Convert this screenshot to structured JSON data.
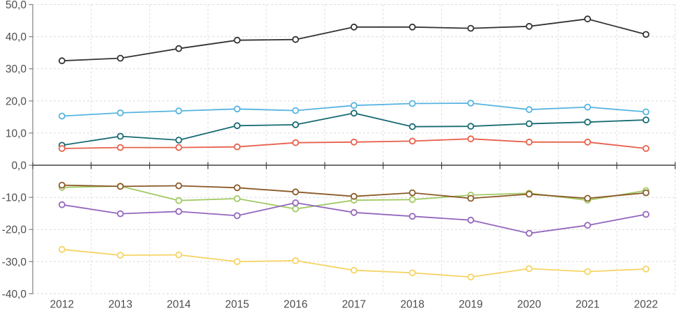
{
  "chart_data": {
    "type": "line",
    "title": "",
    "xlabel": "",
    "ylabel": "",
    "x_labels": [
      "2012",
      "2013",
      "2014",
      "2015",
      "2016",
      "2017",
      "2018",
      "2019",
      "2020",
      "2021",
      "2022"
    ],
    "y_tick_labels": [
      "50,0",
      "40,0",
      "30,0",
      "20,0",
      "10,0",
      "0,0",
      "-10,0",
      "-20,0",
      "-30,0",
      "-40,0"
    ],
    "ylim": [
      -40,
      50
    ],
    "ytick_step": 10,
    "grid": "dashed",
    "legend": "none",
    "decimal_style": "comma",
    "series": [
      {
        "name": "dark-gray-line",
        "color": "#333333",
        "values": [
          32.5,
          33.3,
          36.3,
          38.9,
          39.1,
          43.0,
          43.0,
          42.6,
          43.2,
          45.5,
          40.7
        ]
      },
      {
        "name": "light-blue-line",
        "color": "#56b4e1",
        "values": [
          15.3,
          16.3,
          16.9,
          17.5,
          17.0,
          18.6,
          19.2,
          19.3,
          17.3,
          18.1,
          16.6
        ]
      },
      {
        "name": "teal-line",
        "color": "#166a73",
        "values": [
          6.2,
          9.0,
          7.8,
          12.3,
          12.6,
          16.2,
          12.0,
          12.1,
          12.9,
          13.4,
          14.1
        ]
      },
      {
        "name": "red-line",
        "color": "#e8604c",
        "values": [
          5.2,
          5.5,
          5.5,
          5.7,
          7.0,
          7.2,
          7.5,
          8.2,
          7.2,
          7.2,
          5.2
        ]
      },
      {
        "name": "green-line",
        "color": "#a2c964",
        "values": [
          -6.9,
          -6.5,
          -11.0,
          -10.4,
          -13.6,
          -10.9,
          -10.7,
          -9.3,
          -8.7,
          -10.9,
          -7.9
        ]
      },
      {
        "name": "brown-line",
        "color": "#8a5a28",
        "values": [
          -6.2,
          -6.6,
          -6.4,
          -7.0,
          -8.3,
          -9.7,
          -8.6,
          -10.3,
          -9.0,
          -10.3,
          -8.6
        ]
      },
      {
        "name": "purple-line",
        "color": "#9467bd",
        "values": [
          -12.3,
          -15.1,
          -14.4,
          -15.7,
          -11.7,
          -14.7,
          -15.9,
          -17.1,
          -21.2,
          -18.7,
          -15.3
        ]
      },
      {
        "name": "yellow-line",
        "color": "#f5d463",
        "values": [
          -26.2,
          -28.0,
          -27.9,
          -30.0,
          -29.7,
          -32.7,
          -33.5,
          -34.8,
          -32.2,
          -33.1,
          -32.3
        ]
      }
    ],
    "colors": {
      "gridline": "#dcdcdc",
      "y_axis_line": "#808080",
      "zero_axis_line": "#404040",
      "tick_label": "#4d4d4d",
      "marker_fill": "#ffffff"
    }
  }
}
